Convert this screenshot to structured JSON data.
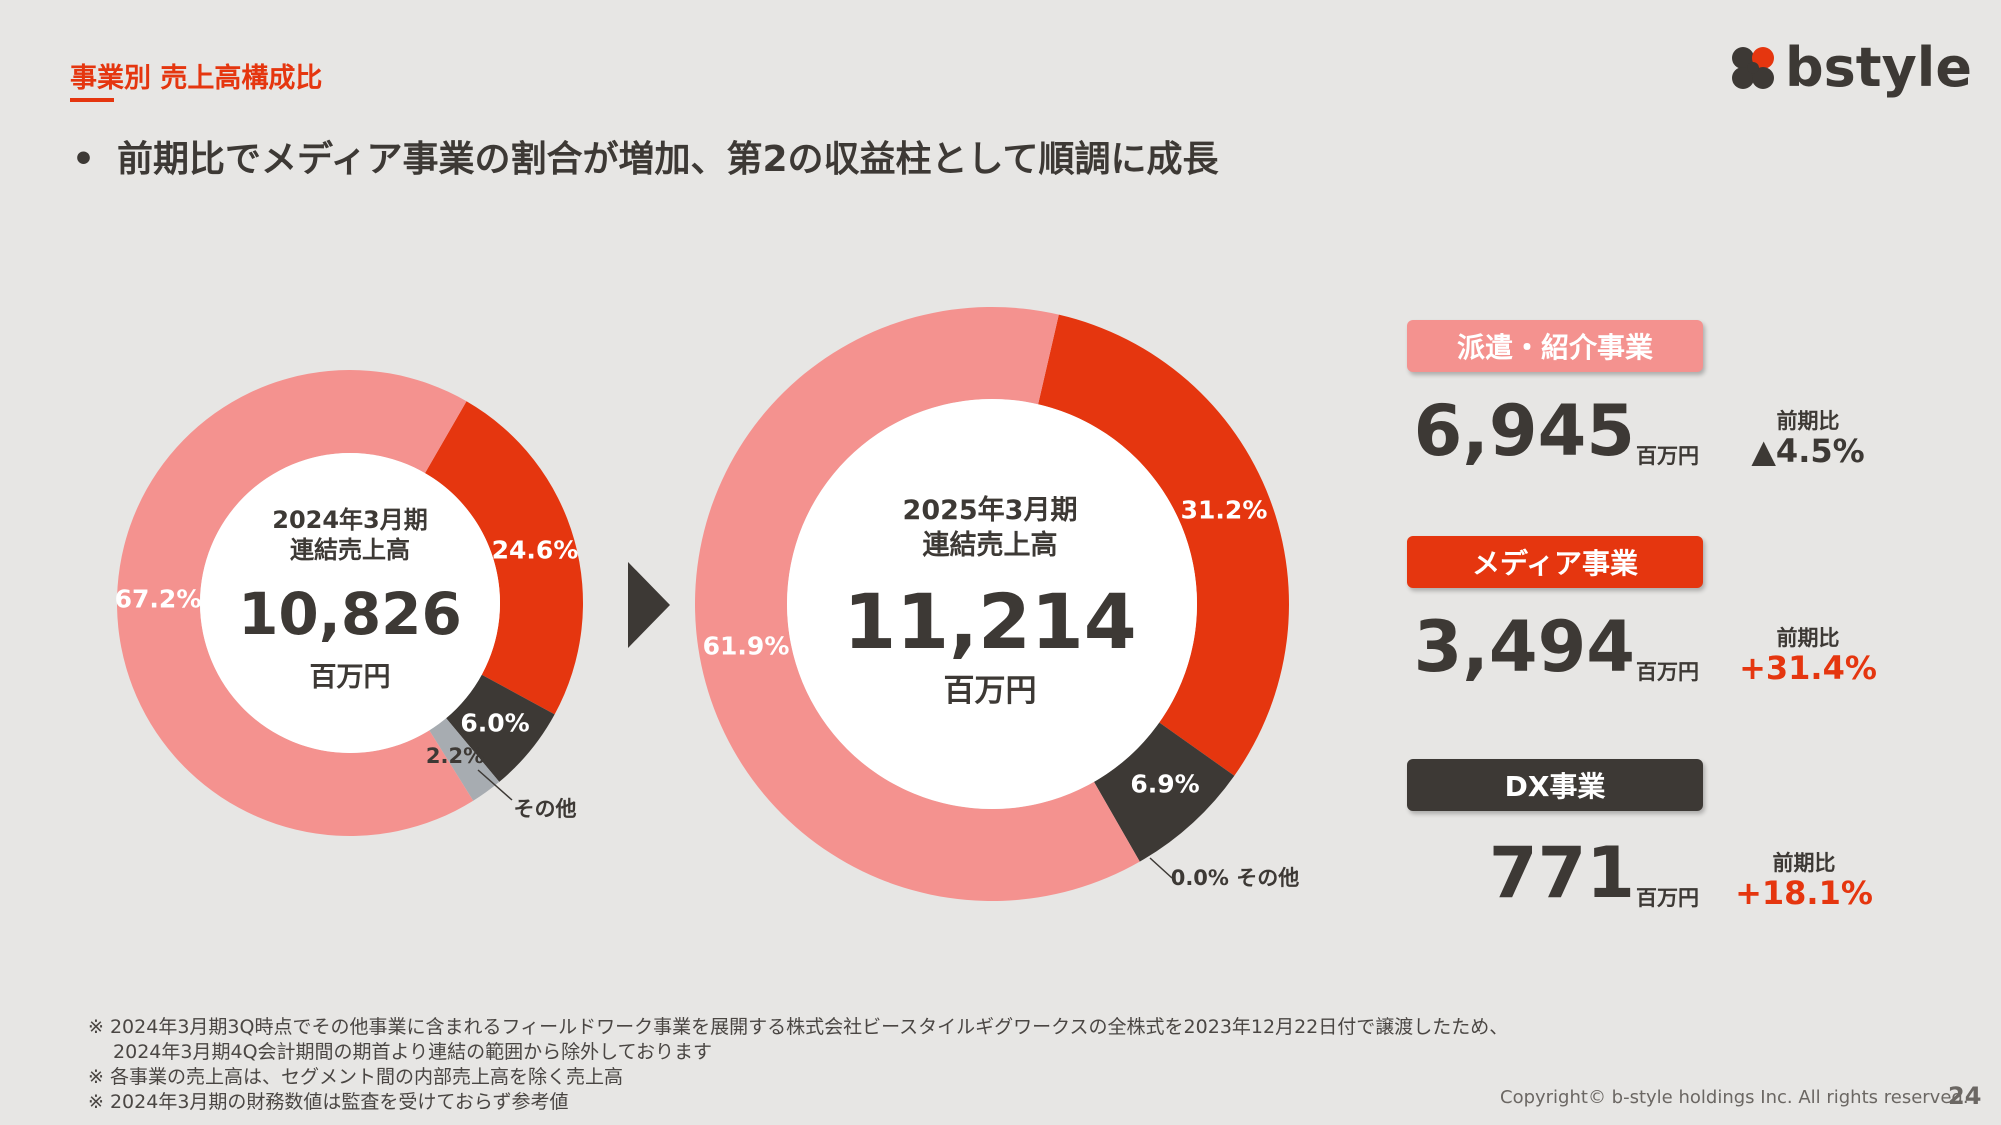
{
  "section_title": "事業別 売上高構成比",
  "headline": "前期比でメディア事業の割合が増加、第2の収益柱として順調に成長",
  "bullet": "•",
  "logo_text": "bstyle",
  "colors": {
    "accent": "#e5360f",
    "dispatch": "#f4928f",
    "media": "#e5360f",
    "dx": "#3d3935",
    "other": "#a7acb1",
    "background": "#e7e6e4"
  },
  "chart_data": [
    {
      "type": "pie",
      "center_title": [
        "2024年3月期",
        "連結売上高"
      ],
      "center_value": "10,826",
      "center_unit": "百万円",
      "slices": [
        {
          "name": "メディア事業",
          "value": 24.6,
          "label": "24.6%"
        },
        {
          "name": "DX事業",
          "value": 6.0,
          "label": "6.0%"
        },
        {
          "name": "その他",
          "value": 2.2,
          "label": "2.2%"
        },
        {
          "name": "派遣・紹介事業",
          "value": 67.2,
          "label": "67.2%"
        }
      ],
      "other_callout": "その他"
    },
    {
      "type": "pie",
      "center_title": [
        "2025年3月期",
        "連結売上高"
      ],
      "center_value": "11,214",
      "center_unit": "百万円",
      "slices": [
        {
          "name": "メディア事業",
          "value": 31.2,
          "label": "31.2%"
        },
        {
          "name": "DX事業",
          "value": 6.9,
          "label": "6.9%"
        },
        {
          "name": "その他",
          "value": 0.0,
          "label": "0.0%"
        },
        {
          "name": "派遣・紹介事業",
          "value": 61.9,
          "label": "61.9%"
        }
      ],
      "other_callout": "0.0% その他"
    }
  ],
  "segments": [
    {
      "name": "派遣・紹介事業",
      "value": "6,945",
      "unit": "百万円",
      "yoy_label": "前期比",
      "yoy_value": "▲4.5%"
    },
    {
      "name": "メディア事業",
      "value": "3,494",
      "unit": "百万円",
      "yoy_label": "前期比",
      "yoy_value": "+31.4%"
    },
    {
      "name": "DX事業",
      "value": "771",
      "unit": "百万円",
      "yoy_label": "前期比",
      "yoy_value": "+18.1%"
    }
  ],
  "notes": [
    "※ 2024年3月期3Q時点でその他事業に含まれるフィールドワーク事業を展開する株式会社ビースタイルギグワークスの全株式を2023年12月22日付で譲渡したため、",
    "　 2024年3月期4Q会計期間の期首より連結の範囲から除外しております",
    "※ 各事業の売上高は、セグメント間の内部売上高を除く売上高",
    "※ 2024年3月期の財務数値は監査を受けておらず参考値"
  ],
  "copyright": "Copyright© b-style holdings Inc. All rights reserved.",
  "page_number": "24"
}
